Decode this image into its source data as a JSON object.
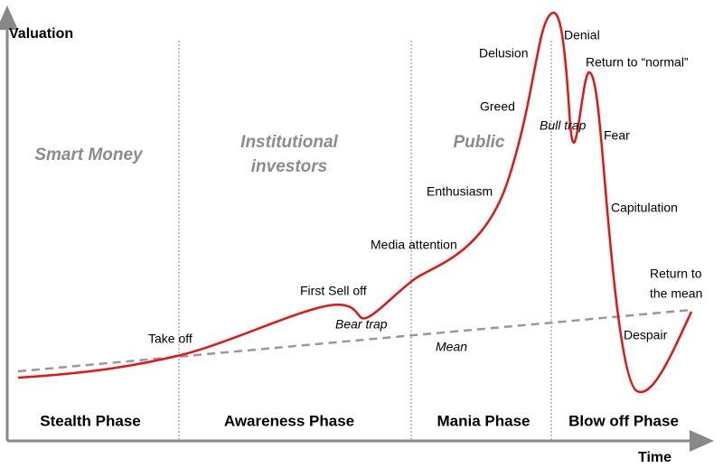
{
  "axes": {
    "y_label": "Valuation",
    "x_label": "Time"
  },
  "phases": [
    "Stealth Phase",
    "Awareness Phase",
    "Mania Phase",
    "Blow off Phase"
  ],
  "groups": [
    {
      "lines": [
        "Smart Money"
      ]
    },
    {
      "lines": [
        "Institutional",
        "investors"
      ]
    },
    {
      "lines": [
        "Public"
      ]
    }
  ],
  "annotations": [
    "Take off",
    "First Sell off",
    "Bear trap",
    "Media attention",
    "Enthusiasm",
    "Greed",
    "Delusion",
    "Denial",
    "Return to “normal”",
    "Bull trap",
    "Fear",
    "Capitulation",
    "Despair",
    "Mean"
  ],
  "return_to_mean": [
    "Return to",
    "the mean"
  ]
}
